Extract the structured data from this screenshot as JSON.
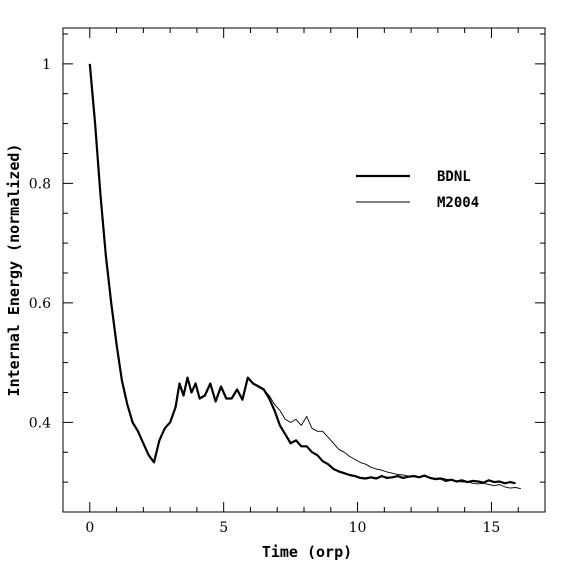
{
  "chart_data": {
    "type": "line",
    "xlabel": "Time (orp)",
    "ylabel": "Internal Energy (normalized)",
    "xlim": [
      -1.0,
      17.0
    ],
    "ylim": [
      0.25,
      1.06
    ],
    "x_ticks": [
      0,
      5,
      10,
      15
    ],
    "x_tick_labels": [
      "0",
      "5",
      "10",
      "15"
    ],
    "y_ticks": [
      0.4,
      0.6,
      0.8,
      1.0
    ],
    "y_tick_labels": [
      "0.4",
      "0.6",
      "0.8",
      "1"
    ],
    "legend_position": "right",
    "grid": false,
    "series": [
      {
        "name": "BDNL",
        "line_weight": "thick",
        "x": [
          0,
          0.2,
          0.4,
          0.6,
          0.8,
          1.0,
          1.2,
          1.4,
          1.6,
          1.8,
          2.0,
          2.2,
          2.4,
          2.6,
          2.8,
          3.0,
          3.2,
          3.35,
          3.5,
          3.65,
          3.8,
          3.95,
          4.1,
          4.3,
          4.5,
          4.7,
          4.9,
          5.1,
          5.3,
          5.5,
          5.7,
          5.9,
          6.1,
          6.3,
          6.5,
          6.7,
          6.9,
          7.1,
          7.3,
          7.5,
          7.7,
          7.9,
          8.1,
          8.3,
          8.5,
          8.7,
          8.9,
          9.1,
          9.3,
          9.5,
          9.7,
          9.9,
          10.1,
          10.3,
          10.5,
          10.7,
          10.9,
          11.1,
          11.3,
          11.5,
          11.7,
          11.9,
          12.1,
          12.3,
          12.5,
          12.7,
          12.9,
          13.1,
          13.3,
          13.5,
          13.7,
          13.9,
          14.1,
          14.3,
          14.5,
          14.7,
          14.9,
          15.1,
          15.3,
          15.5,
          15.7,
          15.9
        ],
        "y": [
          1.0,
          0.9,
          0.78,
          0.68,
          0.6,
          0.53,
          0.47,
          0.43,
          0.4,
          0.385,
          0.365,
          0.345,
          0.333,
          0.37,
          0.39,
          0.4,
          0.425,
          0.465,
          0.445,
          0.475,
          0.45,
          0.465,
          0.44,
          0.445,
          0.465,
          0.435,
          0.46,
          0.44,
          0.44,
          0.455,
          0.438,
          0.475,
          0.465,
          0.46,
          0.455,
          0.44,
          0.42,
          0.395,
          0.38,
          0.365,
          0.37,
          0.36,
          0.36,
          0.35,
          0.345,
          0.335,
          0.33,
          0.322,
          0.318,
          0.315,
          0.312,
          0.31,
          0.307,
          0.306,
          0.308,
          0.306,
          0.31,
          0.307,
          0.308,
          0.31,
          0.307,
          0.309,
          0.31,
          0.308,
          0.311,
          0.307,
          0.305,
          0.306,
          0.302,
          0.304,
          0.301,
          0.303,
          0.3,
          0.302,
          0.301,
          0.299,
          0.303,
          0.3,
          0.301,
          0.298,
          0.3,
          0.298
        ]
      },
      {
        "name": "M2004",
        "line_weight": "thin",
        "x": [
          0,
          0.2,
          0.4,
          0.6,
          0.8,
          1.0,
          1.2,
          1.4,
          1.6,
          1.8,
          2.0,
          2.2,
          2.4,
          2.6,
          2.8,
          3.0,
          3.2,
          3.35,
          3.5,
          3.65,
          3.8,
          3.95,
          4.1,
          4.3,
          4.5,
          4.7,
          4.9,
          5.1,
          5.3,
          5.5,
          5.7,
          5.9,
          6.1,
          6.3,
          6.5,
          6.7,
          6.9,
          7.1,
          7.3,
          7.5,
          7.7,
          7.9,
          8.1,
          8.3,
          8.5,
          8.7,
          8.9,
          9.1,
          9.3,
          9.5,
          9.7,
          9.9,
          10.1,
          10.3,
          10.5,
          10.7,
          10.9,
          11.1,
          11.3,
          11.5,
          11.7,
          11.9,
          12.1,
          12.3,
          12.5,
          12.7,
          12.9,
          13.1,
          13.3,
          13.5,
          13.7,
          13.9,
          14.1,
          14.3,
          14.5,
          14.7,
          14.9,
          15.1,
          15.3,
          15.5,
          15.7,
          15.9,
          16.1
        ],
        "y": [
          1.0,
          0.9,
          0.78,
          0.68,
          0.6,
          0.53,
          0.47,
          0.43,
          0.4,
          0.385,
          0.365,
          0.345,
          0.333,
          0.37,
          0.39,
          0.4,
          0.425,
          0.465,
          0.445,
          0.475,
          0.45,
          0.465,
          0.44,
          0.445,
          0.465,
          0.435,
          0.46,
          0.44,
          0.44,
          0.455,
          0.438,
          0.475,
          0.465,
          0.46,
          0.455,
          0.445,
          0.43,
          0.42,
          0.405,
          0.4,
          0.405,
          0.395,
          0.41,
          0.39,
          0.385,
          0.385,
          0.375,
          0.365,
          0.355,
          0.35,
          0.343,
          0.338,
          0.333,
          0.33,
          0.325,
          0.322,
          0.32,
          0.317,
          0.315,
          0.313,
          0.312,
          0.31,
          0.311,
          0.309,
          0.31,
          0.308,
          0.306,
          0.307,
          0.305,
          0.303,
          0.302,
          0.3,
          0.301,
          0.298,
          0.297,
          0.298,
          0.296,
          0.294,
          0.296,
          0.292,
          0.29,
          0.291,
          0.289
        ]
      }
    ]
  }
}
